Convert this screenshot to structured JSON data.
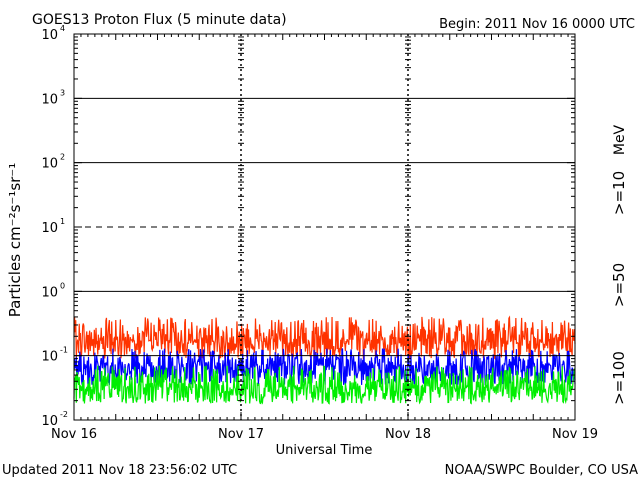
{
  "header": {
    "title": "GOES13 Proton Flux (5 minute data)",
    "begin": "Begin: 2011 Nov 16 0000 UTC"
  },
  "footer": {
    "updated": "Updated 2011 Nov 18 23:56:02 UTC",
    "credit": "NOAA/SWPC Boulder, CO USA"
  },
  "chart_data": {
    "type": "line",
    "title": "GOES13 Proton Flux (5 minute data)",
    "xlabel": "Universal Time",
    "ylabel": "Particles cm⁻²s⁻¹sr⁻¹",
    "y_scale": "log",
    "ylim": [
      0.01,
      10000
    ],
    "y_ticks": [
      {
        "base": "10",
        "exp": "4"
      },
      {
        "base": "10",
        "exp": "3"
      },
      {
        "base": "10",
        "exp": "2"
      },
      {
        "base": "10",
        "exp": "1"
      },
      {
        "base": "10",
        "exp": "0"
      },
      {
        "base": "10",
        "exp": "-1"
      },
      {
        "base": "10",
        "exp": "-2"
      }
    ],
    "x_ticks": [
      "Nov 16",
      "Nov 17",
      "Nov 18",
      "Nov 19"
    ],
    "xlim_days": [
      0,
      3
    ],
    "grid": {
      "solid_lines": [
        1000,
        100,
        1,
        0.1
      ],
      "dashed_lines": [
        10,
        0.01
      ],
      "day_separators": "dashed"
    },
    "legend_unit": "MeV",
    "series": [
      {
        "name": ">=10",
        "color": "#ff3300",
        "range": [
          0.09,
          0.4
        ],
        "typical": 0.17
      },
      {
        "name": ">=50",
        "color": "#0000ff",
        "range": [
          0.035,
          0.13
        ],
        "typical": 0.07
      },
      {
        "name": ">=100",
        "color": "#00ee00",
        "range": [
          0.018,
          0.07
        ],
        "typical": 0.032
      }
    ]
  }
}
